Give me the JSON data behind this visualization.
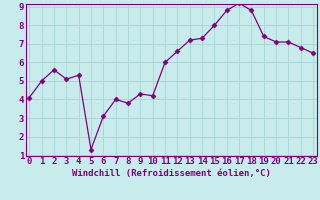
{
  "x": [
    0,
    1,
    2,
    3,
    4,
    5,
    6,
    7,
    8,
    9,
    10,
    11,
    12,
    13,
    14,
    15,
    16,
    17,
    18,
    19,
    20,
    21,
    22,
    23
  ],
  "y": [
    4.1,
    5.0,
    5.6,
    5.1,
    5.3,
    1.3,
    3.1,
    4.0,
    3.8,
    4.3,
    4.2,
    6.0,
    6.6,
    7.2,
    7.3,
    8.0,
    8.8,
    9.2,
    8.8,
    7.4,
    7.1,
    7.1,
    6.8,
    6.5
  ],
  "line_color": "#800080",
  "marker": "D",
  "marker_size": 2.5,
  "bg_color": "#c8ecec",
  "grid_color": "#aed8d8",
  "xlabel": "Windchill (Refroidissement éolien,°C)",
  "xlim": [
    0,
    23
  ],
  "ylim": [
    1,
    9
  ],
  "yticks": [
    1,
    2,
    3,
    4,
    5,
    6,
    7,
    8,
    9
  ],
  "xticks": [
    0,
    1,
    2,
    3,
    4,
    5,
    6,
    7,
    8,
    9,
    10,
    11,
    12,
    13,
    14,
    15,
    16,
    17,
    18,
    19,
    20,
    21,
    22,
    23
  ],
  "tick_color": "#800080",
  "label_color": "#800080",
  "font_size_xlabel": 6.5,
  "font_size_ticks": 6.5
}
